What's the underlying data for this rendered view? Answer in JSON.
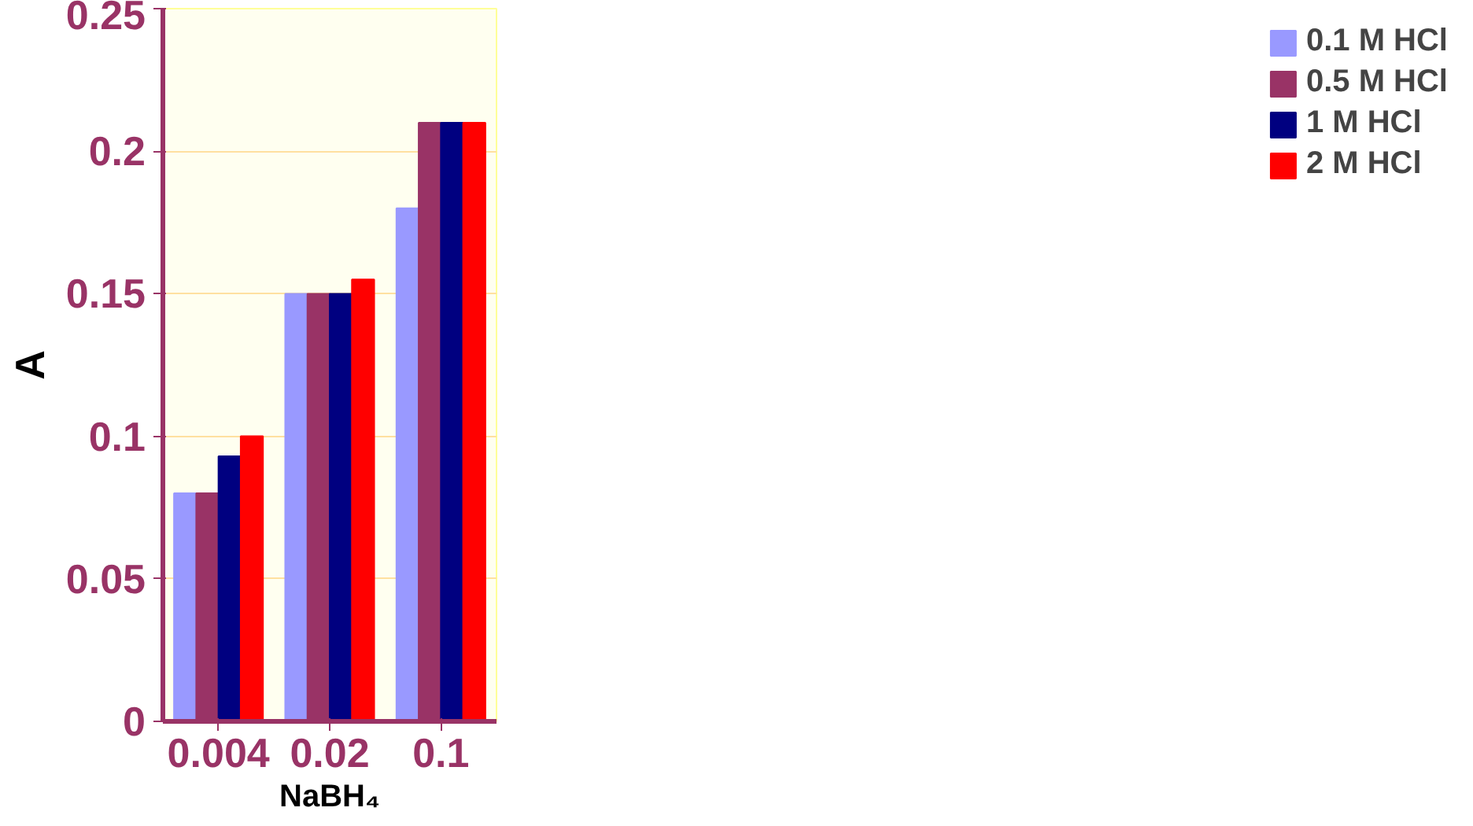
{
  "chart_data": {
    "type": "bar",
    "xlabel": "NaBH₄",
    "ylabel": "A",
    "categories": [
      "0.004",
      "0.02",
      "0.1"
    ],
    "series": [
      {
        "name": "0.1 M HCl",
        "color": "#9999ff",
        "values": [
          0.08,
          0.15,
          0.18
        ]
      },
      {
        "name": "0.5 M HCl",
        "color": "#993366",
        "values": [
          0.08,
          0.15,
          0.21
        ]
      },
      {
        "name": "1 M HCl",
        "color": "#000080",
        "values": [
          0.093,
          0.15,
          0.21
        ]
      },
      {
        "name": "2 M HCl",
        "color": "#ff0000",
        "values": [
          0.1,
          0.155,
          0.21
        ]
      }
    ],
    "ylim": [
      0,
      0.25
    ],
    "yticks": [
      0,
      0.05,
      0.1,
      0.15,
      0.2,
      0.25
    ],
    "grid": "y",
    "legend": "right"
  }
}
